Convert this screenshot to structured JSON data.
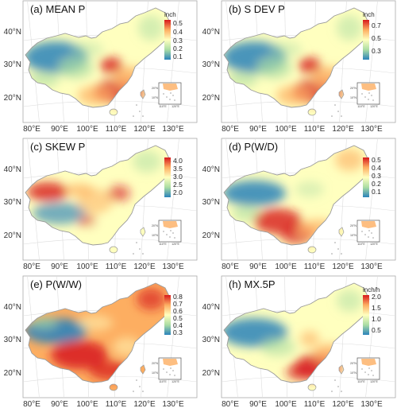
{
  "colors": {
    "palette": [
      "#2b83ba",
      "#abdda4",
      "#ffffbf",
      "#fdae61",
      "#d7191c"
    ],
    "frame": "#aaaaaa",
    "graticule": "#dddddd",
    "border": "#9a9a9a"
  },
  "axes": {
    "y_labels": [
      "40°N",
      "30°N",
      "20°N"
    ],
    "x_labels": [
      "80°E",
      "90°E",
      "100°E",
      "110°E",
      "120°E",
      "130°E"
    ]
  },
  "inset": {
    "lat_labels": [
      "20°N",
      "10°N"
    ],
    "lon_labels": [
      "110°E",
      "120°E"
    ]
  },
  "panels": [
    {
      "title": "(a) MEAN P",
      "unit": "inch",
      "ticks": [
        "0.5",
        "0.4",
        "0.3",
        "0.2",
        "0.1"
      ],
      "tick_fracs": [
        0.08,
        0.3,
        0.52,
        0.72,
        0.92
      ],
      "scheme": "south_wet"
    },
    {
      "title": "(b) S DEV P",
      "unit": "inch",
      "ticks": [
        "0.7",
        "0.5",
        "0.3"
      ],
      "tick_fracs": [
        0.14,
        0.45,
        0.78
      ],
      "scheme": "south_wet"
    },
    {
      "title": "(c) SKEW P",
      "unit": "",
      "ticks": [
        "4.0",
        "3.5",
        "3.0",
        "2.5",
        "2.0"
      ],
      "tick_fracs": [
        0.08,
        0.28,
        0.48,
        0.68,
        0.88
      ],
      "scheme": "skew"
    },
    {
      "title": "(d) P(W/D)",
      "unit": "",
      "ticks": [
        "0.5",
        "0.4",
        "0.3",
        "0.2",
        "0.1"
      ],
      "tick_fracs": [
        0.06,
        0.26,
        0.46,
        0.66,
        0.86
      ],
      "scheme": "wd"
    },
    {
      "title": "(e) P(W/W)",
      "unit": "",
      "ticks": [
        "0.8",
        "0.7",
        "0.6",
        "0.5",
        "0.4",
        "0.3"
      ],
      "tick_fracs": [
        0.04,
        0.22,
        0.4,
        0.58,
        0.76,
        0.94
      ],
      "scheme": "ww"
    },
    {
      "title": "(h) MX.5P",
      "unit": "inch/h",
      "ticks": [
        "2.0",
        "1.5",
        "1.0",
        "0.5"
      ],
      "tick_fracs": [
        0.04,
        0.32,
        0.6,
        0.88
      ],
      "scheme": "mx"
    }
  ]
}
